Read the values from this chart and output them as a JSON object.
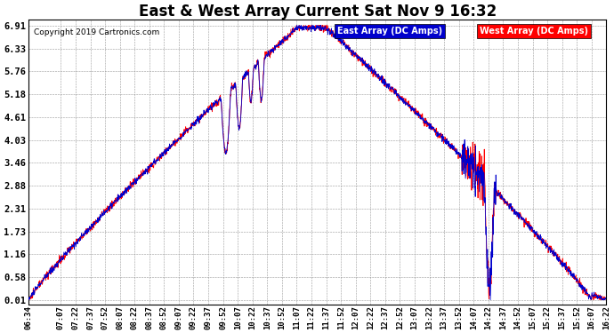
{
  "title": "East & West Array Current Sat Nov 9 16:32",
  "copyright": "Copyright 2019 Cartronics.com",
  "legend_east": "East Array (DC Amps)",
  "legend_west": "West Array (DC Amps)",
  "east_color": "#0000CC",
  "west_color": "#FF0000",
  "bg_color": "#FFFFFF",
  "plot_bg_color": "#FFFFFF",
  "grid_color": "#999999",
  "ylim": [
    0.01,
    6.91
  ],
  "yticks": [
    0.01,
    0.58,
    1.16,
    1.73,
    2.31,
    2.88,
    3.46,
    4.03,
    4.61,
    5.18,
    5.76,
    6.33,
    6.91
  ],
  "xtick_labels": [
    "06:34",
    "07:07",
    "07:22",
    "07:37",
    "07:52",
    "08:07",
    "08:22",
    "08:37",
    "08:52",
    "09:07",
    "09:22",
    "09:37",
    "09:52",
    "10:07",
    "10:22",
    "10:37",
    "10:52",
    "11:07",
    "11:22",
    "11:37",
    "11:52",
    "12:07",
    "12:22",
    "12:37",
    "12:52",
    "13:07",
    "13:22",
    "13:37",
    "13:52",
    "14:07",
    "14:22",
    "14:37",
    "14:52",
    "15:07",
    "15:22",
    "15:37",
    "15:52",
    "16:07",
    "16:22"
  ],
  "figsize": [
    6.9,
    3.75
  ],
  "dpi": 100
}
